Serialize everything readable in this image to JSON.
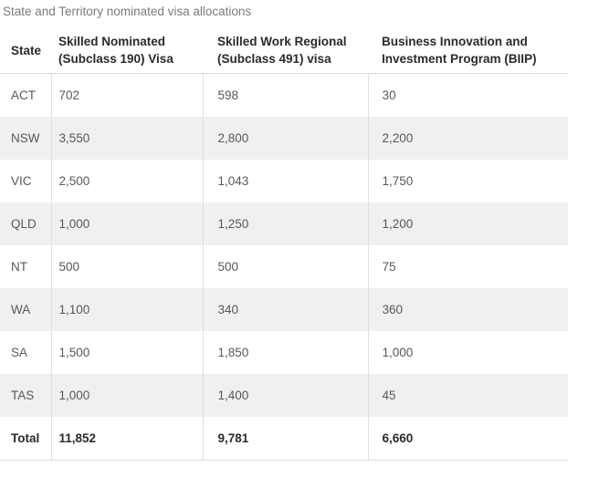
{
  "title": "State and Territory nominated visa allocations",
  "table": {
    "columns": [
      "State",
      "Skilled Nominated (Subclass 190) Visa",
      "Skilled Work Regional (Subclass 491) visa",
      "Business Innovation and Investment Program (BIIP)"
    ],
    "rows": [
      {
        "state": "ACT",
        "c190": "702",
        "c491": "598",
        "biip": "30"
      },
      {
        "state": "NSW",
        "c190": "3,550",
        "c491": "2,800",
        "biip": "2,200"
      },
      {
        "state": "VIC",
        "c190": "2,500",
        "c491": "1,043",
        "biip": "1,750"
      },
      {
        "state": "QLD",
        "c190": "1,000",
        "c491": "1,250",
        "biip": "1,200"
      },
      {
        "state": "NT",
        "c190": "500",
        "c491": "500",
        "biip": "75"
      },
      {
        "state": "WA",
        "c190": "1,100",
        "c491": "340",
        "biip": "360"
      },
      {
        "state": "SA",
        "c190": "1,500",
        "c491": "1,850",
        "biip": "1,000"
      },
      {
        "state": "TAS",
        "c190": "1,000",
        "c491": "1,400",
        "biip": "45"
      }
    ],
    "total": {
      "state": "Total",
      "c190": "11,852",
      "c491": "9,781",
      "biip": "6,660"
    }
  },
  "colors": {
    "page_bg": "#ffffff",
    "title_text": "#7b7b7b",
    "header_text": "#2a2a2a",
    "body_text": "#585858",
    "stripe_bg": "#f0f0f0",
    "border": "#e0e0e0",
    "header_divider": "#d9d9d9"
  },
  "chart_data": {
    "type": "table",
    "title": "State and Territory nominated visa allocations",
    "columns": [
      "State",
      "Skilled Nominated (Subclass 190) Visa",
      "Skilled Work Regional (Subclass 491) visa",
      "Business Innovation and Investment Program (BIIP)"
    ],
    "rows": [
      [
        "ACT",
        702,
        598,
        30
      ],
      [
        "NSW",
        3550,
        2800,
        2200
      ],
      [
        "VIC",
        2500,
        1043,
        1750
      ],
      [
        "QLD",
        1000,
        1250,
        1200
      ],
      [
        "NT",
        500,
        500,
        75
      ],
      [
        "WA",
        1100,
        340,
        360
      ],
      [
        "SA",
        1500,
        1850,
        1000
      ],
      [
        "TAS",
        1000,
        1400,
        45
      ]
    ],
    "total_row": [
      "Total",
      11852,
      9781,
      6660
    ],
    "layout": {
      "zebra_striping": true,
      "striped_rows": [
        "NSW",
        "QLD",
        "WA",
        "TAS"
      ]
    }
  }
}
